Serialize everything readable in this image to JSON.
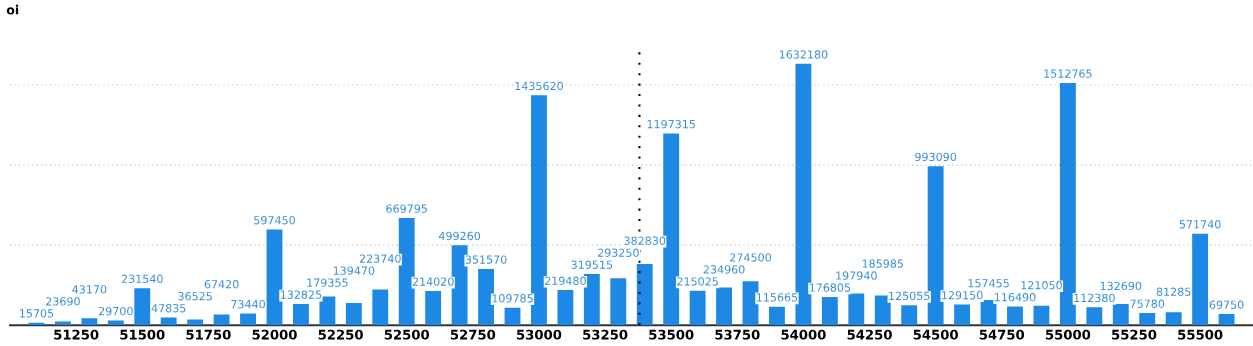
{
  "chart_data": {
    "type": "bar",
    "ylabel": "oi",
    "x": [
      51100,
      51200,
      51300,
      51400,
      51500,
      51600,
      51700,
      51800,
      51900,
      52000,
      52100,
      52200,
      52300,
      52400,
      52500,
      52600,
      52700,
      52800,
      52900,
      53000,
      53100,
      53200,
      53300,
      53400,
      53500,
      53600,
      53700,
      53800,
      53900,
      54000,
      54100,
      54200,
      54300,
      54400,
      54500,
      54600,
      54700,
      54800,
      54900,
      55000,
      55100,
      55200,
      55300,
      55400,
      55500,
      55600
    ],
    "values": [
      15705,
      23690,
      43170,
      29700,
      231540,
      47835,
      36525,
      67420,
      73440,
      597450,
      132825,
      179355,
      139470,
      223740,
      669795,
      214020,
      499260,
      351570,
      109785,
      1435620,
      219480,
      319515,
      293250,
      382830,
      1197315,
      215025,
      234960,
      274500,
      115665,
      1632180,
      176805,
      197940,
      185985,
      125055,
      993090,
      129150,
      157455,
      116490,
      121050,
      1512765,
      112380,
      132690,
      75780,
      81285,
      571740,
      69750
    ],
    "color": "#1e88e5",
    "data_labels": true,
    "xlim": [
      51000,
      55700
    ],
    "xticks": [
      51250,
      51500,
      51750,
      52000,
      52250,
      52500,
      52750,
      53000,
      53250,
      53500,
      53750,
      54000,
      54250,
      54500,
      54750,
      55000,
      55250,
      55500
    ],
    "ylim": [
      0,
      1750000
    ],
    "yticks": [
      {
        "value": 500000,
        "label": null
      },
      {
        "value": 1000000,
        "label": null
      },
      {
        "value": 1500000,
        "label": null
      }
    ],
    "tick_labels": "x",
    "grid": "y",
    "ref_lines": [
      {
        "axis": "x",
        "value": 53380,
        "label": null,
        "color": "#000000",
        "line_style": "dotted"
      }
    ]
  }
}
